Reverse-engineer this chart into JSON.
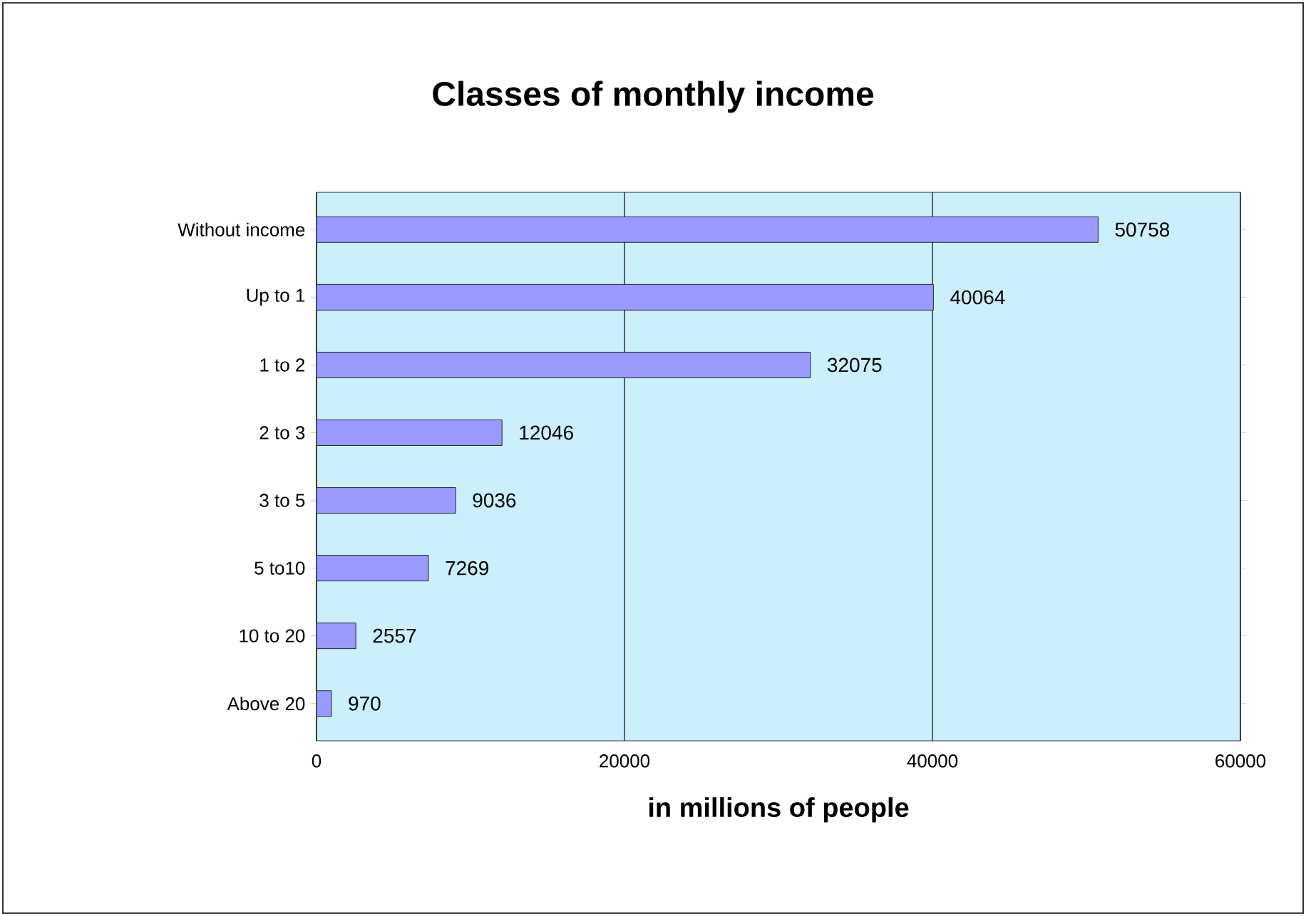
{
  "chart_data": {
    "type": "bar",
    "orientation": "horizontal",
    "title": "Classes of monthly income",
    "xlabel": "in millions of people",
    "categories": [
      "Without income",
      "Up to 1",
      "1 to 2",
      "2 to 3",
      "3 to 5",
      "5 to10",
      "10 to 20",
      "Above 20"
    ],
    "values": [
      50758,
      40064,
      32075,
      12046,
      9036,
      7269,
      2557,
      970
    ],
    "color": "#9999ff",
    "data_labels": true,
    "grid": "x",
    "xlim": [
      0,
      60000
    ],
    "xticks": [
      0,
      20000,
      40000,
      60000
    ]
  }
}
